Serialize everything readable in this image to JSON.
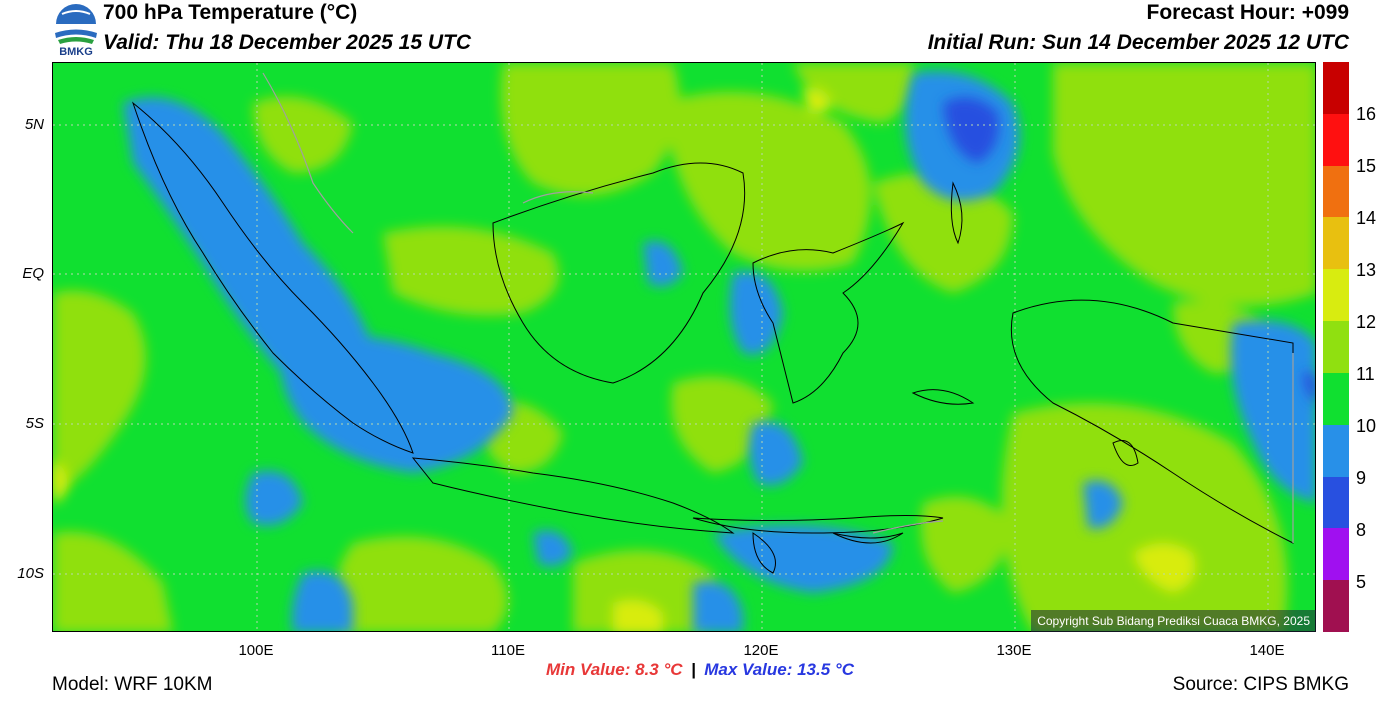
{
  "header": {
    "title": "700 hPa Temperature (°C)",
    "valid": "Valid: Thu 18 December 2025 15 UTC",
    "forecast_hour": "Forecast Hour: +099",
    "initial_run": "Initial Run: Sun 14 December 2025 12 UTC",
    "logo_text": "BMKG"
  },
  "map": {
    "lat_labels": [
      "5N",
      "EQ",
      "5S",
      "10S"
    ],
    "lon_labels": [
      "100E",
      "110E",
      "120E",
      "130E",
      "140E"
    ],
    "copyright": "Copyright Sub Bidang Prediksi Cuaca BMKG, 2025"
  },
  "colorbar": {
    "labels": [
      "16",
      "15",
      "14",
      "13",
      "12",
      "11",
      "10",
      "9",
      "8",
      "5"
    ],
    "colors": [
      "#c80000",
      "#ff1010",
      "#f07010",
      "#e8c010",
      "#d8ec10",
      "#90e010",
      "#10e030",
      "#2890e8",
      "#2850e0",
      "#a010f0",
      "#a01050"
    ]
  },
  "footer": {
    "model": "Model: WRF 10KM",
    "source": "Source: CIPS BMKG",
    "min_value": "Min Value: 8.3 °C",
    "separator": "|",
    "max_value": "Max Value: 13.5 °C"
  }
}
